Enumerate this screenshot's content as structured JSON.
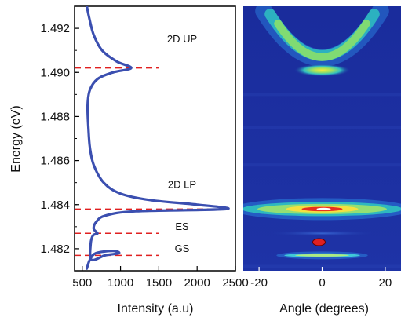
{
  "chart_data": [
    {
      "type": "line",
      "panel": "left",
      "ylabel": "Energy (eV)",
      "xlabel": "Intensity (a.u)",
      "xlim": [
        400,
        2500
      ],
      "ylim": [
        1.481,
        1.493
      ],
      "x_ticks": [
        500,
        1000,
        1500,
        2000,
        2500
      ],
      "y_ticks": [
        1.482,
        1.484,
        1.486,
        1.488,
        1.49,
        1.492
      ],
      "y_tick_labels": [
        "1.482",
        "1.484",
        "1.486",
        "1.488",
        "1.490",
        "1.492"
      ],
      "series": [
        {
          "color": "#3b4fb0",
          "points": [
            [
              560,
              1.4811
            ],
            [
              600,
              1.4815
            ],
            [
              680,
              1.4818
            ],
            [
              900,
              1.4819
            ],
            [
              980,
              1.4818
            ],
            [
              800,
              1.4817
            ],
            [
              620,
              1.4815
            ],
            [
              610,
              1.4822
            ],
            [
              640,
              1.4826
            ],
            [
              700,
              1.4827
            ],
            [
              650,
              1.4829
            ],
            [
              680,
              1.4832
            ],
            [
              800,
              1.4835
            ],
            [
              1200,
              1.4837
            ],
            [
              2380,
              1.4838
            ],
            [
              2000,
              1.484
            ],
            [
              1400,
              1.4842
            ],
            [
              1000,
              1.4845
            ],
            [
              780,
              1.485
            ],
            [
              650,
              1.4858
            ],
            [
              600,
              1.4866
            ],
            [
              580,
              1.4875
            ],
            [
              570,
              1.4885
            ],
            [
              600,
              1.4892
            ],
            [
              700,
              1.4897
            ],
            [
              900,
              1.49
            ],
            [
              1140,
              1.4902
            ],
            [
              950,
              1.4905
            ],
            [
              760,
              1.491
            ],
            [
              650,
              1.4917
            ],
            [
              590,
              1.4925
            ],
            [
              560,
              1.493
            ]
          ]
        }
      ],
      "reference_lines": [
        {
          "label": "2D UP",
          "energy": 1.4902,
          "x_from": 400,
          "x_to": 1500
        },
        {
          "label": "2D LP",
          "energy": 1.4838,
          "x_from": 400,
          "x_to": 2400
        },
        {
          "label": "ES",
          "energy": 1.4827,
          "x_from": 400,
          "x_to": 1500
        },
        {
          "label": "GS",
          "energy": 1.4817,
          "x_from": 400,
          "x_to": 1500
        }
      ],
      "line_color": "#e02020"
    },
    {
      "type": "heatmap",
      "panel": "right",
      "xlabel": "Angle (degrees)",
      "xlim": [
        -25,
        25
      ],
      "ylim": [
        1.481,
        1.493
      ],
      "x_ticks": [
        -20,
        0,
        20
      ],
      "x_tick_labels": [
        "-20",
        "0",
        "20"
      ],
      "background_color": "#1c2fa0",
      "features": [
        {
          "name": "upper polariton",
          "angle_min": -15,
          "angle_max": 15,
          "energy_center": 1.4901,
          "energy_top": 1.4925,
          "peak_color": "#f0e040"
        },
        {
          "name": "lower polariton",
          "angle_min": -24,
          "angle_max": 24,
          "energy_center": 1.4838,
          "peak_color": "#ffffff"
        },
        {
          "name": "ES",
          "angle_min": -18,
          "angle_max": 18,
          "energy_center": 1.4827,
          "peak_color": "#3a6bd8"
        },
        {
          "name": "GS",
          "angle_min": -12,
          "angle_max": 12,
          "energy_center": 1.4817,
          "peak_color": "#9ae070"
        }
      ],
      "marker": {
        "angle": -1,
        "energy": 1.4823,
        "color": "#e02020"
      }
    }
  ]
}
